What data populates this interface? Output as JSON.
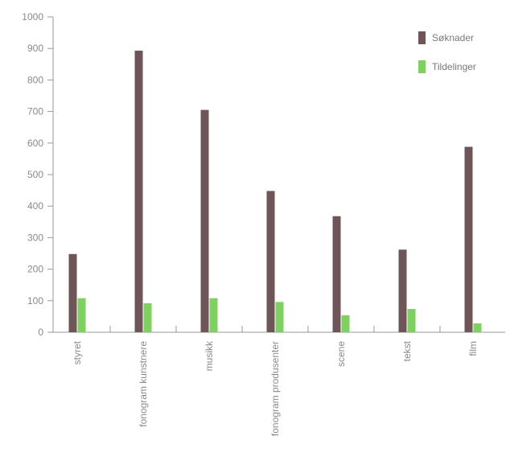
{
  "chart_data": {
    "type": "bar",
    "title": "",
    "xlabel": "",
    "ylabel": "",
    "ylim": [
      0,
      1000
    ],
    "yticks": [
      0,
      100,
      200,
      300,
      400,
      500,
      600,
      700,
      800,
      900,
      1000
    ],
    "grid": false,
    "legend_position": "top-right",
    "categories": [
      "styret",
      "fonogram kunstnere",
      "musikk",
      "fonogram produsenter",
      "scene",
      "tekst",
      "film"
    ],
    "series": [
      {
        "name": "Søknader",
        "color": "#6e5658",
        "values": [
          248,
          893,
          705,
          448,
          368,
          262,
          588
        ]
      },
      {
        "name": "Tildelinger",
        "color": "#7ed060",
        "values": [
          108,
          92,
          108,
          96,
          54,
          74,
          28
        ]
      }
    ]
  }
}
